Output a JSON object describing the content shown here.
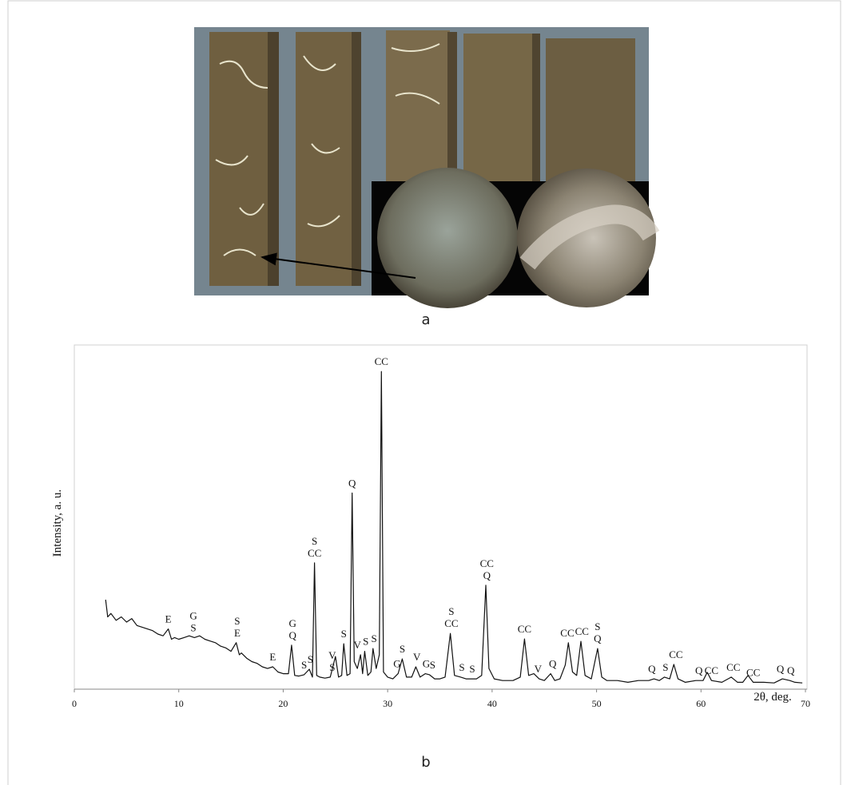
{
  "photo": {
    "caption": "a"
  },
  "chart_data": {
    "type": "line",
    "caption": "b",
    "ylabel": "Intensity, a. u.",
    "xlabel": "2θ, deg.",
    "xlim": [
      0,
      70
    ],
    "xticks": [
      0,
      10,
      20,
      30,
      40,
      50,
      60,
      70
    ],
    "ylim": [
      0,
      100
    ],
    "x": [
      3,
      3.2,
      3.5,
      4,
      4.5,
      5,
      5.5,
      6,
      6.5,
      7,
      7.5,
      8,
      8.5,
      9,
      9.3,
      9.6,
      10,
      10.5,
      11,
      11.5,
      12,
      12.5,
      13,
      13.5,
      14,
      14.5,
      15,
      15.5,
      15.8,
      16,
      16.5,
      17,
      17.5,
      18,
      18.5,
      19,
      19.5,
      20,
      20.5,
      20.8,
      21.1,
      21.5,
      22,
      22.5,
      22.8,
      23,
      23.2,
      23.5,
      24,
      24.5,
      25,
      25.3,
      25.6,
      25.8,
      26.1,
      26.4,
      26.6,
      26.8,
      27.1,
      27.4,
      27.6,
      27.8,
      28.1,
      28.4,
      28.6,
      28.9,
      29.2,
      29.4,
      29.6,
      30,
      30.5,
      31,
      31.4,
      31.8,
      32.3,
      32.7,
      33.1,
      33.6,
      34,
      34.5,
      35,
      35.5,
      36,
      36.4,
      37,
      37.5,
      38,
      38.5,
      39,
      39.4,
      39.7,
      40.2,
      41,
      42,
      42.7,
      43.1,
      43.5,
      44,
      44.5,
      45,
      45.6,
      46,
      46.5,
      47,
      47.3,
      47.7,
      48.1,
      48.5,
      48.9,
      49.5,
      50.1,
      50.5,
      51,
      52,
      53,
      54,
      55,
      55.5,
      56,
      56.5,
      57,
      57.4,
      57.8,
      58.5,
      59.5,
      60.2,
      60.6,
      61,
      62,
      62.9,
      63.5,
      64,
      64.5,
      65,
      66,
      67,
      67.8,
      68.5,
      69,
      69.7
    ],
    "series": [
      {
        "color": "#111111",
        "values": [
          26,
          21,
          22,
          20,
          21,
          19.5,
          20.5,
          18.5,
          18,
          17.5,
          17,
          16,
          15.5,
          17.5,
          14.5,
          15,
          14.5,
          15,
          15.5,
          15,
          15.5,
          14.5,
          14,
          13.5,
          12.5,
          12,
          11,
          13.5,
          10,
          10.5,
          9,
          8,
          7.5,
          6.5,
          6,
          6.5,
          5,
          4.5,
          4.5,
          12.8,
          4,
          3.8,
          4.2,
          5.8,
          3.5,
          36.7,
          4,
          3.5,
          3.2,
          3.5,
          9.5,
          3.5,
          4,
          13.2,
          4,
          4.5,
          57,
          8,
          6,
          10,
          4.5,
          11,
          4,
          5,
          11.8,
          6,
          10,
          92.3,
          5,
          3.5,
          3,
          4.5,
          8.8,
          3.5,
          3.5,
          6.5,
          3.5,
          4.5,
          4.2,
          3,
          3,
          3.5,
          16.2,
          4,
          3.5,
          3,
          3,
          3,
          4,
          30.2,
          6,
          3,
          2.5,
          2.5,
          3.5,
          14.6,
          4,
          4.5,
          3,
          2.5,
          4.5,
          2.5,
          3,
          7,
          13.5,
          5,
          4,
          13.9,
          4,
          3,
          11.8,
          3.5,
          2.5,
          2.5,
          2,
          2.5,
          2.5,
          3,
          2.5,
          3.5,
          3,
          7.2,
          3,
          2,
          2.5,
          2.5,
          4.9,
          2.5,
          2,
          3.5,
          2,
          2,
          4,
          2,
          2,
          1.8,
          3,
          2.5,
          2,
          1.8
        ]
      }
    ],
    "annotations": [
      {
        "lines": [
          "E"
        ],
        "x": 9.0
      },
      {
        "lines": [
          "G",
          "S"
        ],
        "x": 11.4
      },
      {
        "lines": [
          "S",
          "E"
        ],
        "x": 15.6
      },
      {
        "lines": [
          "E"
        ],
        "x": 19.0
      },
      {
        "lines": [
          "G",
          "Q"
        ],
        "x": 20.9
      },
      {
        "lines": [
          "S"
        ],
        "x": 22.0
      },
      {
        "lines": [
          "S"
        ],
        "x": 22.6
      },
      {
        "lines": [
          "S",
          "CC"
        ],
        "x": 23.0
      },
      {
        "lines": [
          "V",
          "S"
        ],
        "x": 24.7
      },
      {
        "lines": [
          "S"
        ],
        "x": 25.8
      },
      {
        "lines": [
          "Q"
        ],
        "x": 26.6
      },
      {
        "lines": [
          "V"
        ],
        "x": 27.1
      },
      {
        "lines": [
          "S"
        ],
        "x": 27.9
      },
      {
        "lines": [
          "S"
        ],
        "x": 28.7
      },
      {
        "lines": [
          "CC"
        ],
        "x": 29.4
      },
      {
        "lines": [
          "G"
        ],
        "x": 30.9
      },
      {
        "lines": [
          "S"
        ],
        "x": 31.4
      },
      {
        "lines": [
          "V"
        ],
        "x": 32.8
      },
      {
        "lines": [
          "G"
        ],
        "x": 33.7
      },
      {
        "lines": [
          "S"
        ],
        "x": 34.3
      },
      {
        "lines": [
          "S",
          "CC"
        ],
        "x": 36.1
      },
      {
        "lines": [
          "S"
        ],
        "x": 37.1
      },
      {
        "lines": [
          "S"
        ],
        "x": 38.1
      },
      {
        "lines": [
          "CC",
          "Q"
        ],
        "x": 39.5
      },
      {
        "lines": [
          "CC"
        ],
        "x": 43.1
      },
      {
        "lines": [
          "V"
        ],
        "x": 44.4
      },
      {
        "lines": [
          "Q"
        ],
        "x": 45.8
      },
      {
        "lines": [
          "CC"
        ],
        "x": 47.2
      },
      {
        "lines": [
          "CC"
        ],
        "x": 48.6
      },
      {
        "lines": [
          "S",
          "Q"
        ],
        "x": 50.1
      },
      {
        "lines": [
          "Q"
        ],
        "x": 55.3
      },
      {
        "lines": [
          "S"
        ],
        "x": 56.6
      },
      {
        "lines": [
          "CC"
        ],
        "x": 57.6
      },
      {
        "lines": [
          "Q"
        ],
        "x": 59.8
      },
      {
        "lines": [
          "CC"
        ],
        "x": 61.0
      },
      {
        "lines": [
          "CC"
        ],
        "x": 63.1
      },
      {
        "lines": [
          "CC"
        ],
        "x": 65.0
      },
      {
        "lines": [
          "Q"
        ],
        "x": 67.6
      },
      {
        "lines": [
          "Q"
        ],
        "x": 68.6
      }
    ]
  }
}
